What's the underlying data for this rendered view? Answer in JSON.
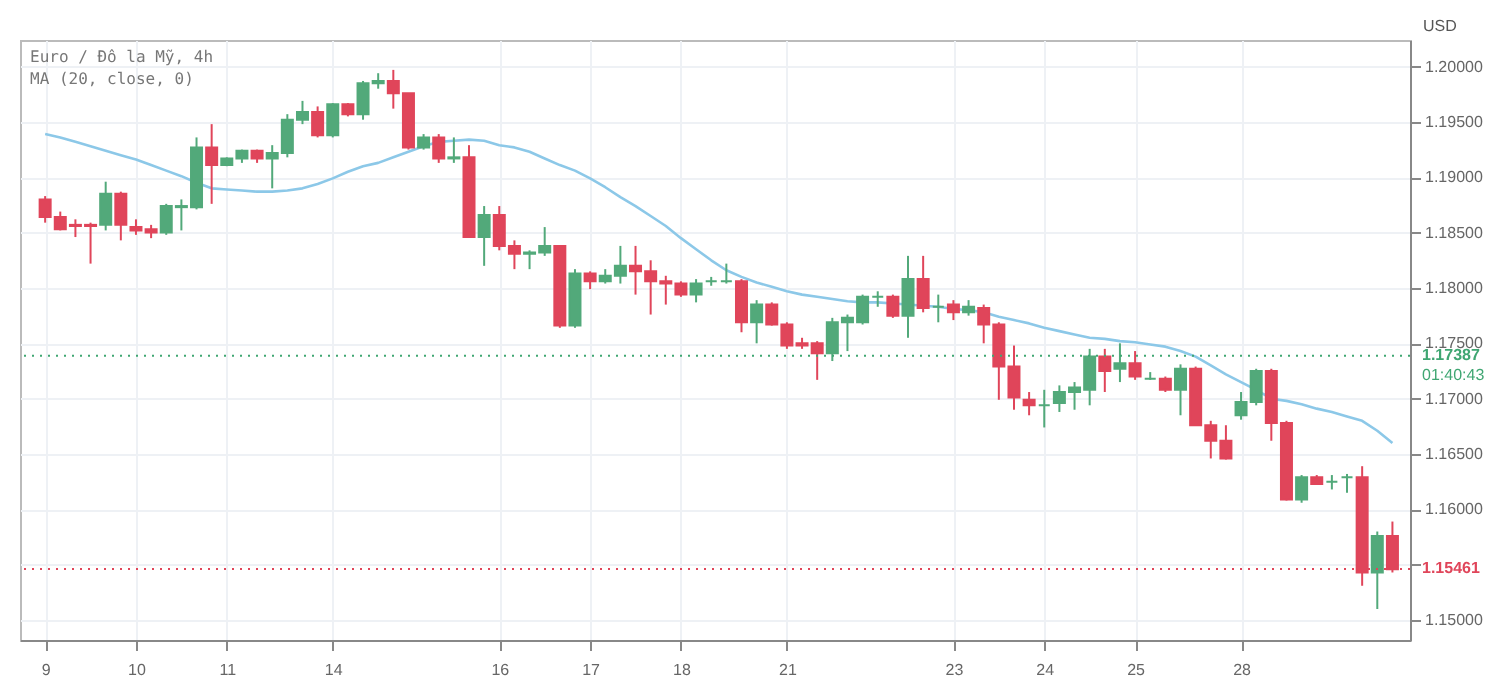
{
  "chart_data": {
    "type": "candlestick",
    "title": "Euro / Đô la Mỹ, 4h",
    "subtitle": "MA (20, close, 0)",
    "ylabel": "USD",
    "categories": [
      "9",
      null,
      null,
      null,
      null,
      null,
      "10",
      null,
      null,
      null,
      null,
      null,
      "11",
      null,
      null,
      null,
      null,
      null,
      null,
      "14",
      null,
      null,
      null,
      null,
      null,
      null,
      null,
      null,
      null,
      null,
      "16",
      null,
      null,
      null,
      null,
      null,
      "17",
      null,
      null,
      null,
      null,
      null,
      "18",
      null,
      null,
      null,
      null,
      null,
      null,
      "21",
      null,
      null,
      null,
      null,
      null,
      null,
      null,
      null,
      null,
      null,
      "23",
      null,
      null,
      null,
      null,
      null,
      "24",
      null,
      null,
      null,
      null,
      null,
      "25",
      null,
      null,
      null,
      null,
      null,
      null,
      "28",
      null,
      null,
      null,
      null,
      null,
      null,
      null,
      null,
      null,
      null
    ],
    "ylim": [
      1.1482,
      1.2024
    ],
    "yticks": [
      {
        "value": 1.15,
        "label": "1.15000"
      },
      {
        "value": 1.155,
        "label": null
      },
      {
        "value": 1.16,
        "label": "1.16000"
      },
      {
        "value": 1.165,
        "label": "1.16500"
      },
      {
        "value": 1.17,
        "label": "1.17000"
      },
      {
        "value": 1.175,
        "label": "1.17500"
      },
      {
        "value": 1.18,
        "label": "1.18000"
      },
      {
        "value": 1.185,
        "label": "1.18500"
      },
      {
        "value": 1.19,
        "label": "1.19000"
      },
      {
        "value": 1.195,
        "label": "1.19500"
      },
      {
        "value": 1.2,
        "label": "1.20000"
      }
    ],
    "grid": true,
    "ohlc": [
      [
        1.188,
        1.1883,
        1.1859,
        1.1864
      ],
      [
        1.1864,
        1.1869,
        1.1852,
        1.1853
      ],
      [
        1.1857,
        1.1862,
        1.1846,
        1.1856
      ],
      [
        1.1857,
        1.1859,
        1.1822,
        1.1856
      ],
      [
        1.1857,
        1.1896,
        1.1852,
        1.1885
      ],
      [
        1.1885,
        1.1887,
        1.1843,
        1.1857
      ],
      [
        1.1855,
        1.1862,
        1.1848,
        1.1852
      ],
      [
        1.1853,
        1.1857,
        1.1845,
        1.185
      ],
      [
        1.185,
        1.1876,
        1.1848,
        1.1874
      ],
      [
        1.1873,
        1.188,
        1.1852,
        1.1874
      ],
      [
        1.1873,
        1.1936,
        1.1871,
        1.1927
      ],
      [
        1.1927,
        1.1948,
        1.1876,
        1.1911
      ],
      [
        1.1911,
        1.1918,
        1.191,
        1.1917
      ],
      [
        1.1917,
        1.1925,
        1.1913,
        1.1924
      ],
      [
        1.1924,
        1.1925,
        1.1913,
        1.1917
      ],
      [
        1.1917,
        1.1929,
        1.189,
        1.1922
      ],
      [
        1.1922,
        1.1957,
        1.1918,
        1.1952
      ],
      [
        1.1952,
        1.1969,
        1.1948,
        1.1959
      ],
      [
        1.1959,
        1.1964,
        1.1936,
        1.1938
      ],
      [
        1.1938,
        1.1967,
        1.1936,
        1.1966
      ],
      [
        1.1966,
        1.1967,
        1.1955,
        1.1957
      ],
      [
        1.1957,
        1.1987,
        1.1952,
        1.1985
      ],
      [
        1.1985,
        1.1994,
        1.198,
        1.1987
      ],
      [
        1.1987,
        1.1997,
        1.1962,
        1.1976
      ],
      [
        1.1976,
        1.1976,
        1.1925,
        1.1927
      ],
      [
        1.1927,
        1.1939,
        1.1925,
        1.1936
      ],
      [
        1.1936,
        1.1939,
        1.1913,
        1.1917
      ],
      [
        1.1917,
        1.1936,
        1.1913,
        1.1918
      ],
      [
        1.1918,
        1.1929,
        1.1846,
        1.1846
      ],
      [
        1.1846,
        1.1874,
        1.182,
        1.1866
      ],
      [
        1.1866,
        1.1874,
        1.1834,
        1.1838
      ],
      [
        1.1838,
        1.1843,
        1.1817,
        1.1831
      ],
      [
        1.1831,
        1.1834,
        1.1817,
        1.1832
      ],
      [
        1.1832,
        1.1855,
        1.1829,
        1.1838
      ],
      [
        1.1838,
        1.1838,
        1.1764,
        1.1766
      ],
      [
        1.1766,
        1.1817,
        1.1764,
        1.1813
      ],
      [
        1.1813,
        1.1815,
        1.1799,
        1.1806
      ],
      [
        1.1806,
        1.1817,
        1.1804,
        1.1811
      ],
      [
        1.1811,
        1.1838,
        1.1804,
        1.182
      ],
      [
        1.182,
        1.1838,
        1.1794,
        1.1815
      ],
      [
        1.1815,
        1.1825,
        1.1776,
        1.1806
      ],
      [
        1.1806,
        1.1811,
        1.1785,
        1.1804
      ],
      [
        1.1804,
        1.1806,
        1.1792,
        1.1794
      ],
      [
        1.1794,
        1.1808,
        1.1787,
        1.1804
      ],
      [
        1.1806,
        1.181,
        1.1802,
        1.1806
      ],
      [
        1.1806,
        1.1822,
        1.1804,
        1.1806
      ],
      [
        1.1806,
        1.1808,
        1.176,
        1.1769
      ],
      [
        1.1769,
        1.1789,
        1.175,
        1.1785
      ],
      [
        1.1785,
        1.1787,
        1.1766,
        1.1767
      ],
      [
        1.1767,
        1.1769,
        1.1745,
        1.1748
      ],
      [
        1.175,
        1.1755,
        1.1745,
        1.1748
      ],
      [
        1.175,
        1.1752,
        1.1717,
        1.1741
      ],
      [
        1.1741,
        1.1773,
        1.1734,
        1.1769
      ],
      [
        1.1769,
        1.1776,
        1.1743,
        1.1773
      ],
      [
        1.1769,
        1.1794,
        1.1767,
        1.1792
      ],
      [
        1.1792,
        1.1797,
        1.1783,
        1.1792
      ],
      [
        1.1792,
        1.1794,
        1.1773,
        1.1775
      ],
      [
        1.1775,
        1.1829,
        1.1755,
        1.1808
      ],
      [
        1.1808,
        1.1829,
        1.1778,
        1.1782
      ],
      [
        1.1783,
        1.1794,
        1.1769,
        1.1783
      ],
      [
        1.1785,
        1.1789,
        1.1771,
        1.1778
      ],
      [
        1.1778,
        1.1789,
        1.1775,
        1.1783
      ],
      [
        1.1782,
        1.1785,
        1.175,
        1.1767
      ],
      [
        1.1767,
        1.1769,
        1.1699,
        1.1729
      ],
      [
        1.1729,
        1.1748,
        1.169,
        1.1701
      ],
      [
        1.1699,
        1.1706,
        1.1685,
        1.1694
      ],
      [
        1.1694,
        1.1708,
        1.1674,
        1.1694
      ],
      [
        1.1696,
        1.1712,
        1.1688,
        1.1706
      ],
      [
        1.1706,
        1.1715,
        1.169,
        1.171
      ],
      [
        1.1708,
        1.1745,
        1.1694,
        1.1738
      ],
      [
        1.1738,
        1.1745,
        1.1706,
        1.1725
      ],
      [
        1.1727,
        1.175,
        1.1715,
        1.1732
      ],
      [
        1.1732,
        1.1743,
        1.1717,
        1.172
      ],
      [
        1.1718,
        1.1724,
        1.1717,
        1.1718
      ],
      [
        1.1718,
        1.172,
        1.1706,
        1.1708
      ],
      [
        1.1708,
        1.1731,
        1.1685,
        1.1727
      ],
      [
        1.1727,
        1.1729,
        1.1676,
        1.1676
      ],
      [
        1.1676,
        1.168,
        1.1646,
        1.1662
      ],
      [
        1.1662,
        1.1676,
        1.1645,
        1.1646
      ],
      [
        1.1685,
        1.1706,
        1.1681,
        1.1697
      ],
      [
        1.1697,
        1.1727,
        1.1694,
        1.1725
      ],
      [
        1.1725,
        1.1727,
        1.1662,
        1.1678
      ],
      [
        1.1678,
        1.168,
        1.1608,
        1.1609
      ],
      [
        1.1609,
        1.1631,
        1.1606,
        1.1629
      ],
      [
        1.1629,
        1.1631,
        1.1622,
        1.1623
      ],
      [
        1.1625,
        1.1631,
        1.1618,
        1.1625
      ],
      [
        1.1629,
        1.1632,
        1.1615,
        1.1629
      ],
      [
        1.1629,
        1.1639,
        1.1531,
        1.1543
      ],
      [
        1.1543,
        1.158,
        1.151,
        1.1576
      ],
      [
        1.1576,
        1.1589,
        1.1543,
        1.1546
      ]
    ],
    "colors": [
      "#e0455a",
      "#e0455a",
      "#e0455a",
      "#e0455a",
      "#52a97a",
      "#e0455a",
      "#e0455a",
      "#e0455a",
      "#52a97a",
      "#52a97a",
      "#52a97a",
      "#e0455a",
      "#52a97a",
      "#52a97a",
      "#e0455a",
      "#52a97a",
      "#52a97a",
      "#52a97a",
      "#e0455a",
      "#52a97a",
      "#e0455a",
      "#52a97a",
      "#52a97a",
      "#e0455a",
      "#e0455a",
      "#52a97a",
      "#e0455a",
      "#52a97a",
      "#e0455a",
      "#52a97a",
      "#e0455a",
      "#e0455a",
      "#52a97a",
      "#52a97a",
      "#e0455a",
      "#52a97a",
      "#e0455a",
      "#52a97a",
      "#52a97a",
      "#e0455a",
      "#e0455a",
      "#e0455a",
      "#e0455a",
      "#52a97a",
      "#52a97a",
      "#52a97a",
      "#e0455a",
      "#52a97a",
      "#e0455a",
      "#e0455a",
      "#e0455a",
      "#e0455a",
      "#52a97a",
      "#52a97a",
      "#52a97a",
      "#52a97a",
      "#e0455a",
      "#52a97a",
      "#e0455a",
      "#52a97a",
      "#e0455a",
      "#52a97a",
      "#e0455a",
      "#e0455a",
      "#e0455a",
      "#e0455a",
      "#52a97a",
      "#52a97a",
      "#52a97a",
      "#52a97a",
      "#e0455a",
      "#52a97a",
      "#e0455a",
      "#52a97a",
      "#e0455a",
      "#52a97a",
      "#e0455a",
      "#e0455a",
      "#e0455a",
      "#52a97a",
      "#52a97a",
      "#e0455a",
      "#e0455a",
      "#52a97a",
      "#e0455a",
      "#52a97a",
      "#52a97a",
      "#e0455a",
      "#52a97a",
      "#e0455a"
    ],
    "series": [
      {
        "type": "line",
        "color": "#8cc8e8",
        "values": [
          1.1939,
          1.1936,
          1.1932,
          1.1928,
          1.1924,
          1.192,
          1.1916,
          1.1911,
          1.1906,
          1.1901,
          1.1895,
          1.189,
          1.1889,
          1.1888,
          1.1887,
          1.1887,
          1.1888,
          1.189,
          1.1894,
          1.1899,
          1.1905,
          1.191,
          1.1913,
          1.1918,
          1.1923,
          1.1928,
          1.1932,
          1.1933,
          1.1934,
          1.1933,
          1.1929,
          1.1927,
          1.1923,
          1.1917,
          1.1911,
          1.1906,
          1.1899,
          1.1891,
          1.1882,
          1.1874,
          1.1865,
          1.1856,
          1.1845,
          1.1835,
          1.1825,
          1.1816,
          1.181,
          1.1805,
          1.1801,
          1.1797,
          1.1794,
          1.1792,
          1.179,
          1.1788,
          1.1787,
          1.1787,
          1.1786,
          1.1785,
          1.1784,
          1.1783,
          1.1781,
          1.178,
          1.1778,
          1.1774,
          1.1771,
          1.1768,
          1.1764,
          1.1761,
          1.1758,
          1.1755,
          1.1754,
          1.1752,
          1.1751,
          1.1749,
          1.1747,
          1.1743,
          1.1738,
          1.173,
          1.1722,
          1.1715,
          1.1708,
          1.17,
          1.1698,
          1.1695,
          1.1691,
          1.1688,
          1.1684,
          1.168,
          1.1671,
          1.166
        ]
      }
    ],
    "ref_lines": [
      {
        "axis": "y",
        "value": 1.17387,
        "label": "1.17387",
        "color": "#3fa672",
        "line_style": "dotted"
      },
      {
        "axis": "y",
        "value": 1.15461,
        "label": "1.15461",
        "color": "#e0455a",
        "line_style": "dotted"
      }
    ],
    "annotations": [
      "01:40:43"
    ]
  }
}
